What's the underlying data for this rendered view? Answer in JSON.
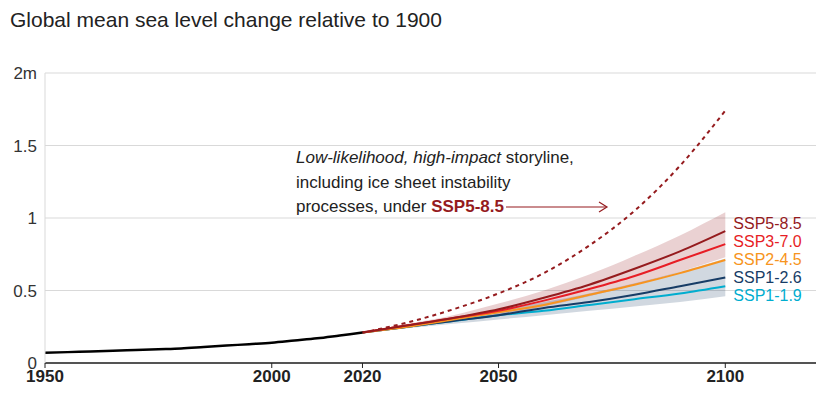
{
  "chart_data": {
    "type": "line",
    "title": "Global mean sea level change relative to 1900",
    "annotation": [
      "Low-likelihood, high-impact storyline,",
      "including ice sheet instability",
      "processes, under SSP5-8.5"
    ],
    "xlim": [
      1950,
      2120
    ],
    "xticks": [
      1950,
      2000,
      2020,
      2050,
      2100
    ],
    "ylim": [
      0,
      2
    ],
    "yticks": [
      0,
      0.5,
      1,
      1.5,
      {
        "value": 2,
        "label": "2m"
      }
    ],
    "grid": true,
    "series": [
      {
        "color": "#000000",
        "x": [
          1950,
          1955,
          1960,
          1965,
          1970,
          1975,
          1980,
          1985,
          1990,
          1995,
          2000,
          2005,
          2010,
          2015,
          2020
        ],
        "values": [
          0.07,
          0.075,
          0.08,
          0.085,
          0.09,
          0.095,
          0.1,
          0.11,
          0.12,
          0.13,
          0.14,
          0.155,
          0.17,
          0.19,
          0.21
        ]
      },
      {
        "color": "#951b1e",
        "line_style": "dashed",
        "x": [
          2020,
          2030,
          2040,
          2050,
          2060,
          2070,
          2080,
          2090,
          2100
        ],
        "values": [
          0.21,
          0.28,
          0.37,
          0.48,
          0.62,
          0.81,
          1.05,
          1.36,
          1.74
        ]
      },
      {
        "name": "SSP5-8.5",
        "color": "#951b1e",
        "x": [
          2020,
          2030,
          2040,
          2050,
          2060,
          2070,
          2080,
          2090,
          2100
        ],
        "values": [
          0.21,
          0.26,
          0.31,
          0.37,
          0.45,
          0.54,
          0.65,
          0.77,
          0.91
        ],
        "lower": [
          0.21,
          0.25,
          0.29,
          0.33,
          0.39,
          0.46,
          0.54,
          0.63,
          0.73
        ],
        "upper": [
          0.21,
          0.27,
          0.33,
          0.41,
          0.5,
          0.61,
          0.74,
          0.88,
          1.04
        ]
      },
      {
        "name": "SSP3-7.0",
        "color": "#e71d25",
        "x": [
          2020,
          2030,
          2040,
          2050,
          2060,
          2070,
          2080,
          2090,
          2100
        ],
        "values": [
          0.21,
          0.26,
          0.31,
          0.36,
          0.43,
          0.51,
          0.6,
          0.71,
          0.82
        ]
      },
      {
        "name": "SSP2-4.5",
        "color": "#f79420",
        "x": [
          2020,
          2030,
          2040,
          2050,
          2060,
          2070,
          2080,
          2090,
          2100
        ],
        "values": [
          0.21,
          0.25,
          0.3,
          0.35,
          0.4,
          0.47,
          0.54,
          0.62,
          0.71
        ]
      },
      {
        "name": "SSP1-2.6",
        "color": "#173c66",
        "x": [
          2020,
          2030,
          2040,
          2050,
          2060,
          2070,
          2080,
          2090,
          2100
        ],
        "values": [
          0.21,
          0.25,
          0.29,
          0.33,
          0.38,
          0.42,
          0.47,
          0.53,
          0.59
        ],
        "lower": [
          0.21,
          0.24,
          0.27,
          0.3,
          0.33,
          0.36,
          0.39,
          0.42,
          0.46
        ],
        "upper": [
          0.21,
          0.26,
          0.31,
          0.36,
          0.42,
          0.48,
          0.55,
          0.63,
          0.72
        ]
      },
      {
        "name": "SSP1-1.9",
        "color": "#00adcf",
        "x": [
          2020,
          2030,
          2040,
          2050,
          2060,
          2070,
          2080,
          2090,
          2100
        ],
        "values": [
          0.21,
          0.25,
          0.29,
          0.33,
          0.36,
          0.4,
          0.44,
          0.48,
          0.53
        ]
      }
    ]
  }
}
